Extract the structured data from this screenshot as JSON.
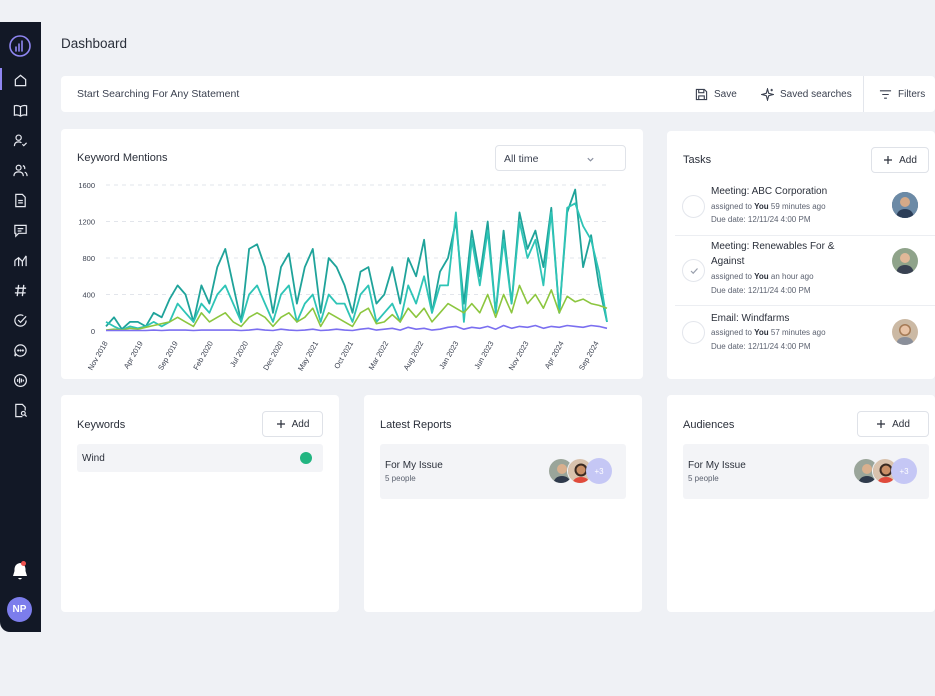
{
  "header": {
    "title": "Dashboard"
  },
  "search": {
    "placeholder": "Start Searching For Any Statement",
    "save_label": "Save",
    "saved_searches_label": "Saved searches",
    "filters_label": "Filters"
  },
  "keyword_mentions": {
    "title": "Keyword Mentions",
    "period": "All time"
  },
  "chart_data": {
    "type": "line",
    "title": "Keyword Mentions",
    "xlabel": "",
    "ylabel": "",
    "ylim": [
      0,
      1600
    ],
    "yticks": [
      0,
      400,
      800,
      1200,
      1600
    ],
    "grid": true,
    "x_tick_labels": [
      "Nov 2018",
      "Apr 2019",
      "Sep 2019",
      "Feb 2020",
      "Jul 2020",
      "Dec 2020",
      "May 2021",
      "Oct 2021",
      "Mar 2022",
      "Aug 2022",
      "Jan 2023",
      "Jun 2023",
      "Nov 2023",
      "Apr 2024",
      "Sep 2024"
    ],
    "series": [
      {
        "color": "#1fa39a",
        "values": [
          50,
          150,
          20,
          100,
          100,
          50,
          200,
          150,
          350,
          500,
          400,
          100,
          500,
          300,
          700,
          900,
          500,
          100,
          900,
          950,
          700,
          200,
          700,
          850,
          300,
          700,
          900,
          200,
          800,
          700,
          500,
          200,
          650,
          700,
          300,
          400,
          700,
          300,
          800,
          600,
          1000,
          200,
          650,
          800,
          1200,
          300,
          1100,
          600,
          1200,
          200,
          1100,
          300,
          1300,
          900,
          1100,
          700,
          1350,
          200,
          1300,
          1550,
          700,
          1050,
          500,
          100
        ]
      },
      {
        "color": "#2ec4b6",
        "values": [
          100,
          50,
          10,
          50,
          30,
          50,
          100,
          50,
          100,
          300,
          200,
          100,
          300,
          200,
          400,
          500,
          300,
          100,
          400,
          500,
          300,
          100,
          400,
          500,
          100,
          300,
          400,
          100,
          400,
          300,
          300,
          100,
          400,
          500,
          100,
          200,
          300,
          100,
          500,
          300,
          600,
          200,
          500,
          500,
          1300,
          100,
          1000,
          500,
          1100,
          200,
          1000,
          300,
          1200,
          800,
          1000,
          500,
          1300,
          200,
          1350,
          1400,
          1150,
          1000,
          650,
          100
        ]
      },
      {
        "color": "#8cc63f",
        "values": [
          10,
          20,
          10,
          30,
          20,
          40,
          60,
          80,
          100,
          150,
          100,
          50,
          200,
          100,
          150,
          200,
          100,
          50,
          150,
          200,
          150,
          50,
          150,
          200,
          100,
          150,
          250,
          50,
          200,
          150,
          100,
          50,
          200,
          250,
          80,
          100,
          180,
          100,
          250,
          150,
          250,
          100,
          200,
          300,
          250,
          200,
          300,
          200,
          400,
          150,
          400,
          200,
          500,
          300,
          400,
          250,
          450,
          200,
          380,
          320,
          350,
          300,
          280,
          250
        ]
      },
      {
        "color": "#7b6ff0",
        "values": [
          5,
          5,
          5,
          5,
          5,
          5,
          10,
          5,
          10,
          10,
          10,
          5,
          10,
          10,
          10,
          10,
          10,
          5,
          10,
          20,
          10,
          5,
          20,
          10,
          5,
          10,
          20,
          5,
          10,
          20,
          10,
          5,
          20,
          30,
          10,
          20,
          30,
          10,
          40,
          20,
          30,
          10,
          20,
          40,
          50,
          20,
          40,
          30,
          50,
          20,
          60,
          30,
          50,
          40,
          60,
          30,
          50,
          40,
          60,
          50,
          40,
          60,
          50,
          30
        ]
      }
    ]
  },
  "tasks": {
    "title": "Tasks",
    "add_label": "Add",
    "items": [
      {
        "title": "Meeting: ABC Corporation",
        "assigned_prefix": "assigned to ",
        "assignee": "You",
        "assigned_suffix": " 59 minutes ago",
        "due": "Due date: 12/11/24 4:00 PM",
        "done": false
      },
      {
        "title": "Meeting: Renewables For & Against",
        "assigned_prefix": "assigned to ",
        "assignee": "You",
        "assigned_suffix": " an hour ago",
        "due": "Due date: 12/11/24 4:00 PM",
        "done": true
      },
      {
        "title": "Email: Windfarms",
        "assigned_prefix": "assigned to ",
        "assignee": "You",
        "assigned_suffix": " 57 minutes ago",
        "due": "Due date: 12/11/24 4:00 PM",
        "done": false
      }
    ]
  },
  "keywords": {
    "title": "Keywords",
    "add_label": "Add",
    "items": [
      {
        "label": "Wind",
        "color": "#22b581"
      }
    ]
  },
  "latest_reports": {
    "title": "Latest Reports",
    "items": [
      {
        "name": "For My Issue",
        "sub": "5 people",
        "more": "+3"
      }
    ]
  },
  "audiences": {
    "title": "Audiences",
    "add_label": "Add",
    "items": [
      {
        "name": "For My Issue",
        "sub": "5 people",
        "more": "+3"
      }
    ]
  },
  "user": {
    "initials": "NP"
  }
}
